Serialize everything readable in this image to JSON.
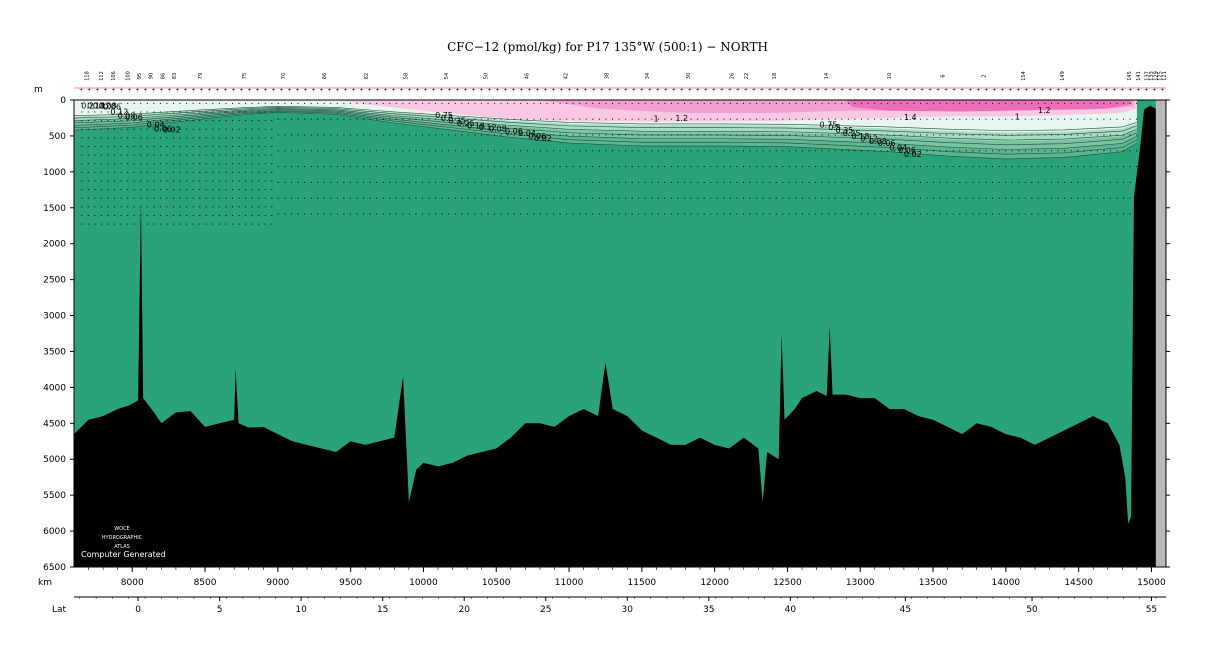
{
  "chart_data": {
    "type": "section",
    "title": "CFC−12 (pmol/kg) for P17 135°W (500:1) − NORTH",
    "yunit": "m",
    "xunit": "km",
    "lat_label": "Lat",
    "xlim": [
      7600,
      15100
    ],
    "ylim": [
      0,
      6500
    ],
    "x_ticks": [
      8000,
      8500,
      9000,
      9500,
      10000,
      10500,
      11000,
      11500,
      12000,
      12500,
      13000,
      13500,
      14000,
      14500,
      15000
    ],
    "y_ticks": [
      0,
      500,
      1000,
      1500,
      2000,
      2500,
      3000,
      3500,
      4000,
      4500,
      5000,
      5500,
      6000,
      6500
    ],
    "lat_ticks": [
      {
        "lat": 0,
        "km": 8040
      },
      {
        "lat": 5,
        "km": 8600
      },
      {
        "lat": 10,
        "km": 9160
      },
      {
        "lat": 15,
        "km": 9720
      },
      {
        "lat": 20,
        "km": 10280
      },
      {
        "lat": 25,
        "km": 10840
      },
      {
        "lat": 30,
        "km": 11400
      },
      {
        "lat": 35,
        "km": 11960
      },
      {
        "lat": 40,
        "km": 12520
      },
      {
        "lat": 45,
        "km": 13310
      },
      {
        "lat": 50,
        "km": 14180
      },
      {
        "lat": 55,
        "km": 15000
      }
    ],
    "station_labels": [
      "118",
      "112",
      "106",
      "100",
      "95",
      "90",
      "86",
      "83",
      "79",
      "75",
      "70",
      "66",
      "62",
      "58",
      "54",
      "50",
      "46",
      "42",
      "38",
      "34",
      "30",
      "26",
      "22",
      "18",
      "14",
      "10",
      "6",
      "2",
      "154",
      "149",
      "145",
      "141",
      "137",
      "133",
      "129",
      "125",
      "121"
    ],
    "station_label_km": [
      7700,
      7800,
      7880,
      7980,
      8060,
      8140,
      8220,
      8300,
      8480,
      8780,
      9050,
      9330,
      9620,
      9890,
      10170,
      10440,
      10720,
      10990,
      11270,
      11550,
      11830,
      12130,
      12230,
      12420,
      12780,
      13210,
      13580,
      13860,
      14130,
      14400,
      14860,
      14920,
      14980,
      15010,
      15040,
      15070,
      15100
    ],
    "contour_levels": [
      1.4,
      1.2,
      1,
      0.75,
      0.5,
      0.35,
      0.25,
      0.18,
      0.12,
      0.08,
      0.06,
      0.04,
      0.02
    ],
    "contour_labels": [
      {
        "text": "0.2",
        "km": 7650,
        "depth": 120
      },
      {
        "text": "0.18",
        "km": 7690,
        "depth": 120
      },
      {
        "text": "0.12",
        "km": 7730,
        "depth": 120
      },
      {
        "text": "0.08",
        "km": 7770,
        "depth": 120
      },
      {
        "text": "0.06",
        "km": 7800,
        "depth": 130
      },
      {
        "text": "0.12",
        "km": 7850,
        "depth": 200
      },
      {
        "text": "0.08",
        "km": 7900,
        "depth": 260
      },
      {
        "text": "0.06",
        "km": 7950,
        "depth": 280
      },
      {
        "text": "0.04",
        "km": 8100,
        "depth": 380
      },
      {
        "text": "0.06",
        "km": 8150,
        "depth": 440
      },
      {
        "text": "0.02",
        "km": 8210,
        "depth": 450
      },
      {
        "text": "0.75",
        "km": 10080,
        "depth": 250
      },
      {
        "text": "0.5",
        "km": 10120,
        "depth": 290
      },
      {
        "text": "0.35",
        "km": 10170,
        "depth": 330
      },
      {
        "text": "0.25",
        "km": 10230,
        "depth": 360
      },
      {
        "text": "0.18",
        "km": 10300,
        "depth": 400
      },
      {
        "text": "0.12",
        "km": 10380,
        "depth": 420
      },
      {
        "text": "0.08",
        "km": 10450,
        "depth": 440
      },
      {
        "text": "0.06",
        "km": 10560,
        "depth": 470
      },
      {
        "text": "0.04",
        "km": 10650,
        "depth": 500
      },
      {
        "text": "0.06",
        "km": 10720,
        "depth": 540
      },
      {
        "text": "0.02",
        "km": 10760,
        "depth": 570
      },
      {
        "text": "1",
        "km": 11580,
        "depth": 300
      },
      {
        "text": "1.2",
        "km": 11730,
        "depth": 290
      },
      {
        "text": "0.75",
        "km": 12720,
        "depth": 380
      },
      {
        "text": "0.5",
        "km": 12780,
        "depth": 420
      },
      {
        "text": "0.35",
        "km": 12830,
        "depth": 460
      },
      {
        "text": "0.25",
        "km": 12880,
        "depth": 500
      },
      {
        "text": "0.18",
        "km": 12940,
        "depth": 540
      },
      {
        "text": "0.12",
        "km": 13000,
        "depth": 580
      },
      {
        "text": "0.08",
        "km": 13060,
        "depth": 610
      },
      {
        "text": "0.06",
        "km": 13120,
        "depth": 640
      },
      {
        "text": "0.04",
        "km": 13200,
        "depth": 700
      },
      {
        "text": "0.06",
        "km": 13260,
        "depth": 740
      },
      {
        "text": "0.02",
        "km": 13300,
        "depth": 790
      },
      {
        "text": "1.4",
        "km": 13300,
        "depth": 280
      },
      {
        "text": "1",
        "km": 14060,
        "depth": 270
      },
      {
        "text": "1.2",
        "km": 14220,
        "depth": 180
      }
    ],
    "bottom_profile": [
      [
        7600,
        4650
      ],
      [
        7700,
        4450
      ],
      [
        7800,
        4400
      ],
      [
        7900,
        4300
      ],
      [
        7980,
        4250
      ],
      [
        8040,
        4180
      ],
      [
        8060,
        1420
      ],
      [
        8075,
        4150
      ],
      [
        8150,
        4350
      ],
      [
        8200,
        4500
      ],
      [
        8300,
        4350
      ],
      [
        8400,
        4330
      ],
      [
        8500,
        4550
      ],
      [
        8600,
        4500
      ],
      [
        8700,
        4450
      ],
      [
        8710,
        3730
      ],
      [
        8730,
        4500
      ],
      [
        8800,
        4560
      ],
      [
        8900,
        4550
      ],
      [
        9000,
        4650
      ],
      [
        9100,
        4750
      ],
      [
        9200,
        4800
      ],
      [
        9300,
        4850
      ],
      [
        9400,
        4900
      ],
      [
        9500,
        4750
      ],
      [
        9600,
        4800
      ],
      [
        9700,
        4750
      ],
      [
        9800,
        4700
      ],
      [
        9860,
        3850
      ],
      [
        9880,
        4700
      ],
      [
        9900,
        5600
      ],
      [
        9950,
        5150
      ],
      [
        10000,
        5050
      ],
      [
        10100,
        5100
      ],
      [
        10200,
        5050
      ],
      [
        10300,
        4950
      ],
      [
        10400,
        4900
      ],
      [
        10500,
        4850
      ],
      [
        10600,
        4700
      ],
      [
        10700,
        4500
      ],
      [
        10800,
        4500
      ],
      [
        10900,
        4550
      ],
      [
        11000,
        4400
      ],
      [
        11100,
        4300
      ],
      [
        11200,
        4400
      ],
      [
        11250,
        3650
      ],
      [
        11300,
        4300
      ],
      [
        11400,
        4400
      ],
      [
        11500,
        4600
      ],
      [
        11600,
        4700
      ],
      [
        11700,
        4800
      ],
      [
        11800,
        4800
      ],
      [
        11900,
        4700
      ],
      [
        12000,
        4800
      ],
      [
        12100,
        4850
      ],
      [
        12200,
        4700
      ],
      [
        12300,
        4850
      ],
      [
        12330,
        5600
      ],
      [
        12360,
        4900
      ],
      [
        12440,
        5000
      ],
      [
        12460,
        3250
      ],
      [
        12480,
        4450
      ],
      [
        12550,
        4300
      ],
      [
        12600,
        4150
      ],
      [
        12700,
        4050
      ],
      [
        12770,
        4120
      ],
      [
        12790,
        3150
      ],
      [
        12810,
        4100
      ],
      [
        12900,
        4100
      ],
      [
        13000,
        4150
      ],
      [
        13100,
        4150
      ],
      [
        13200,
        4300
      ],
      [
        13300,
        4300
      ],
      [
        13400,
        4400
      ],
      [
        13500,
        4450
      ],
      [
        13600,
        4550
      ],
      [
        13700,
        4650
      ],
      [
        13800,
        4500
      ],
      [
        13900,
        4550
      ],
      [
        14000,
        4650
      ],
      [
        14100,
        4700
      ],
      [
        14200,
        4800
      ],
      [
        14300,
        4700
      ],
      [
        14400,
        4600
      ],
      [
        14500,
        4500
      ],
      [
        14600,
        4400
      ],
      [
        14700,
        4500
      ],
      [
        14780,
        4800
      ],
      [
        14820,
        5250
      ],
      [
        14840,
        5900
      ],
      [
        14860,
        5800
      ],
      [
        14880,
        1350
      ],
      [
        14920,
        700
      ],
      [
        14950,
        130
      ],
      [
        14990,
        80
      ],
      [
        15030,
        120
      ],
      [
        15070,
        90
      ],
      [
        15100,
        80
      ]
    ],
    "colors": {
      "deep": "#2aa27c",
      "shallow_mid": "#5bb58f",
      "light": "#a8dcc3",
      "pale": "#e6f5ee",
      "pink_light": "#f9c7e3",
      "pink_mid": "#f29fcf",
      "pink_strong": "#eb6fb8",
      "bottom": "#000000",
      "land_gray": "#b8b8b8"
    },
    "watermark": [
      "WOCE",
      "HYDROGRAPHIC",
      "ATLAS",
      "Computer Generated"
    ]
  }
}
